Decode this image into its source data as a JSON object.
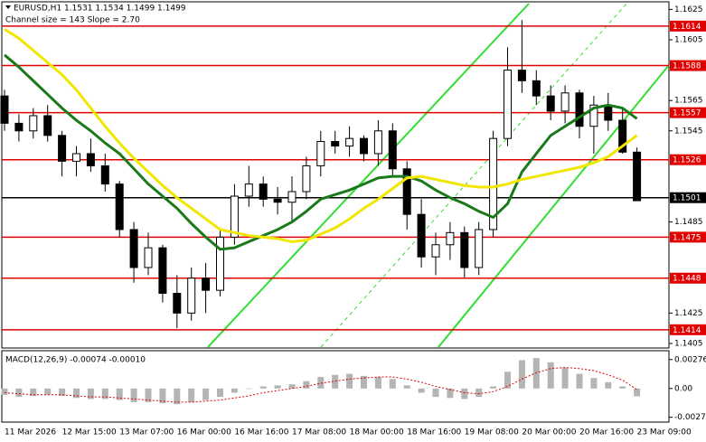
{
  "chart_data": [
    {
      "type": "candlestick",
      "title": "EURUSD,H1  1.1531 1.1534 1.1499 1.1499",
      "subtitle": "Channel size = 143 Slope = 2.70",
      "categories": [
        "11 Mar 2026",
        null,
        null,
        null,
        "12 Mar 15:00",
        null,
        null,
        null,
        "13 Mar 07:00",
        null,
        null,
        null,
        "16 Mar 00:00",
        null,
        null,
        null,
        "16 Mar 16:00",
        null,
        null,
        null,
        "17 Mar 08:00",
        null,
        null,
        null,
        "18 Mar 00:00",
        null,
        null,
        null,
        "18 Mar 16:00",
        null,
        null,
        null,
        "19 Mar 08:00",
        null,
        null,
        null,
        "20 Mar 00:00",
        null,
        null,
        null,
        "20 Mar 16:00",
        null,
        null,
        null,
        "23 Mar 09:00"
      ],
      "open": [
        1.1568,
        1.155,
        1.1545,
        1.1555,
        1.1542,
        1.1525,
        1.153,
        1.1522,
        1.151,
        1.148,
        1.1455,
        1.1468,
        1.1438,
        1.1425,
        1.1448,
        1.144,
        1.1475,
        1.1502,
        1.151,
        1.15,
        1.1498,
        1.1505,
        1.1522,
        1.1538,
        1.1535,
        1.154,
        1.153,
        1.1545,
        1.152,
        1.149,
        1.1462,
        1.147,
        1.1478,
        1.1455,
        1.148,
        1.154,
        1.1585,
        1.1578,
        1.1568,
        1.1558,
        1.157,
        1.1548,
        1.1562,
        1.1552,
        1.1531
      ],
      "high": [
        1.1572,
        1.1556,
        1.156,
        1.1562,
        1.1545,
        1.1535,
        1.154,
        1.153,
        1.1512,
        1.1485,
        1.1478,
        1.147,
        1.145,
        1.1455,
        1.1458,
        1.148,
        1.151,
        1.1522,
        1.1515,
        1.1508,
        1.1515,
        1.1528,
        1.1545,
        1.1545,
        1.1548,
        1.1542,
        1.1552,
        1.155,
        1.1525,
        1.15,
        1.1478,
        1.1485,
        1.1482,
        1.1485,
        1.1545,
        1.16,
        1.1618,
        1.1585,
        1.1575,
        1.1575,
        1.1572,
        1.1568,
        1.157,
        1.156,
        1.1534
      ],
      "low": [
        1.1545,
        1.1538,
        1.154,
        1.1538,
        1.1515,
        1.1515,
        1.1518,
        1.1505,
        1.1475,
        1.1445,
        1.145,
        1.1432,
        1.1415,
        1.142,
        1.1425,
        1.1436,
        1.147,
        1.1495,
        1.1495,
        1.149,
        1.1485,
        1.15,
        1.1515,
        1.153,
        1.1528,
        1.1525,
        1.1522,
        1.1515,
        1.148,
        1.1455,
        1.145,
        1.146,
        1.1448,
        1.145,
        1.1475,
        1.1535,
        1.157,
        1.1562,
        1.1552,
        1.155,
        1.154,
        1.153,
        1.1545,
        1.153,
        1.1499
      ],
      "close": [
        1.155,
        1.1545,
        1.1555,
        1.1542,
        1.1525,
        1.153,
        1.1522,
        1.151,
        1.148,
        1.1455,
        1.1468,
        1.1438,
        1.1425,
        1.1448,
        1.144,
        1.1475,
        1.1502,
        1.151,
        1.15,
        1.1498,
        1.1505,
        1.1522,
        1.1538,
        1.1535,
        1.154,
        1.153,
        1.1545,
        1.152,
        1.149,
        1.1462,
        1.147,
        1.1478,
        1.1455,
        1.148,
        1.154,
        1.1585,
        1.1578,
        1.1568,
        1.1558,
        1.157,
        1.1548,
        1.1562,
        1.1552,
        1.1531,
        1.1499
      ],
      "series": [
        {
          "color": "#1a7a1a",
          "values": [
            1.1595,
            1.1587,
            1.1578,
            1.1569,
            1.156,
            1.1552,
            1.1545,
            1.1537,
            1.153,
            1.152,
            1.151,
            1.1502,
            1.1494,
            1.1484,
            1.1475,
            1.1467,
            1.1468,
            1.1472,
            1.1476,
            1.148,
            1.1485,
            1.1492,
            1.15,
            1.1503,
            1.1506,
            1.151,
            1.1514,
            1.1515,
            1.1515,
            1.1512,
            1.1506,
            1.1501,
            1.1497,
            1.1492,
            1.1488,
            1.1497,
            1.1518,
            1.153,
            1.1542,
            1.1548,
            1.1554,
            1.156,
            1.1562,
            1.156,
            1.1553
          ]
        },
        {
          "color": "#f2e600",
          "values": [
            1.1612,
            1.1606,
            1.1598,
            1.159,
            1.1582,
            1.1572,
            1.156,
            1.1548,
            1.1537,
            1.1527,
            1.1518,
            1.1509,
            1.1501,
            1.1494,
            1.1487,
            1.148,
            1.1478,
            1.1476,
            1.1475,
            1.1474,
            1.1472,
            1.1473,
            1.1477,
            1.1481,
            1.1487,
            1.1494,
            1.15,
            1.1507,
            1.1514,
            1.1515,
            1.1513,
            1.1511,
            1.1509,
            1.1508,
            1.1508,
            1.151,
            1.1513,
            1.1515,
            1.1517,
            1.1519,
            1.1521,
            1.1524,
            1.1528,
            1.1535,
            1.1542
          ]
        }
      ],
      "levels": [
        1.1614,
        1.1588,
        1.1557,
        1.1526,
        1.1501,
        1.1475,
        1.1448,
        1.1414
      ],
      "level_colors": [
        "#e00000",
        "#e00000",
        "#e00000",
        "#e00000",
        "#000000",
        "#e00000",
        "#e00000",
        "#e00000"
      ],
      "ylim": [
        1.1402,
        1.163
      ],
      "yticks": [
        1.1625,
        1.1605,
        1.1565,
        1.1545,
        1.1485,
        1.1425,
        1.1405
      ]
    },
    {
      "type": "bar",
      "title": "MACD(12,26,9) -0.00074 -0.00010",
      "color": "#b4b4b4",
      "values": [
        -0.0006,
        -0.0008,
        -0.0007,
        -0.0006,
        -0.0007,
        -0.0009,
        -0.001,
        -0.001,
        -0.0011,
        -0.0013,
        -0.0013,
        -0.0014,
        -0.0015,
        -0.0013,
        -0.0011,
        -0.0008,
        -0.0004,
        0.0,
        0.0002,
        0.0003,
        0.0004,
        0.0007,
        0.0011,
        0.0013,
        0.0014,
        0.0012,
        0.0011,
        0.0009,
        0.0003,
        -0.0004,
        -0.0008,
        -0.0009,
        -0.001,
        -0.0008,
        0.0002,
        0.0016,
        0.0027,
        0.0029,
        0.0025,
        0.002,
        0.0014,
        0.001,
        0.0006,
        0.0002,
        -0.00074
      ],
      "series": [
        {
          "color": "#e00000",
          "values": [
            -0.0004,
            -0.0005,
            -0.0006,
            -0.0006,
            -0.0006,
            -0.0007,
            -0.0008,
            -0.0008,
            -0.0009,
            -0.001,
            -0.0011,
            -0.0012,
            -0.0013,
            -0.0013,
            -0.0012,
            -0.0011,
            -0.0009,
            -0.0007,
            -0.0004,
            -0.0002,
            0.0,
            0.0002,
            0.0005,
            0.0007,
            0.0009,
            0.001,
            0.0011,
            0.0011,
            0.0009,
            0.0006,
            0.0002,
            -0.0001,
            -0.0004,
            -0.0005,
            -0.0003,
            0.0002,
            0.0009,
            0.0015,
            0.0019,
            0.002,
            0.0019,
            0.0017,
            0.0013,
            0.0008,
            -0.0001
          ]
        }
      ],
      "ylim": [
        -0.0032,
        0.0036
      ],
      "yticks": [
        0.00276,
        {
          "value": 0,
          "label": "0.00"
        },
        -0.00274
      ]
    }
  ]
}
